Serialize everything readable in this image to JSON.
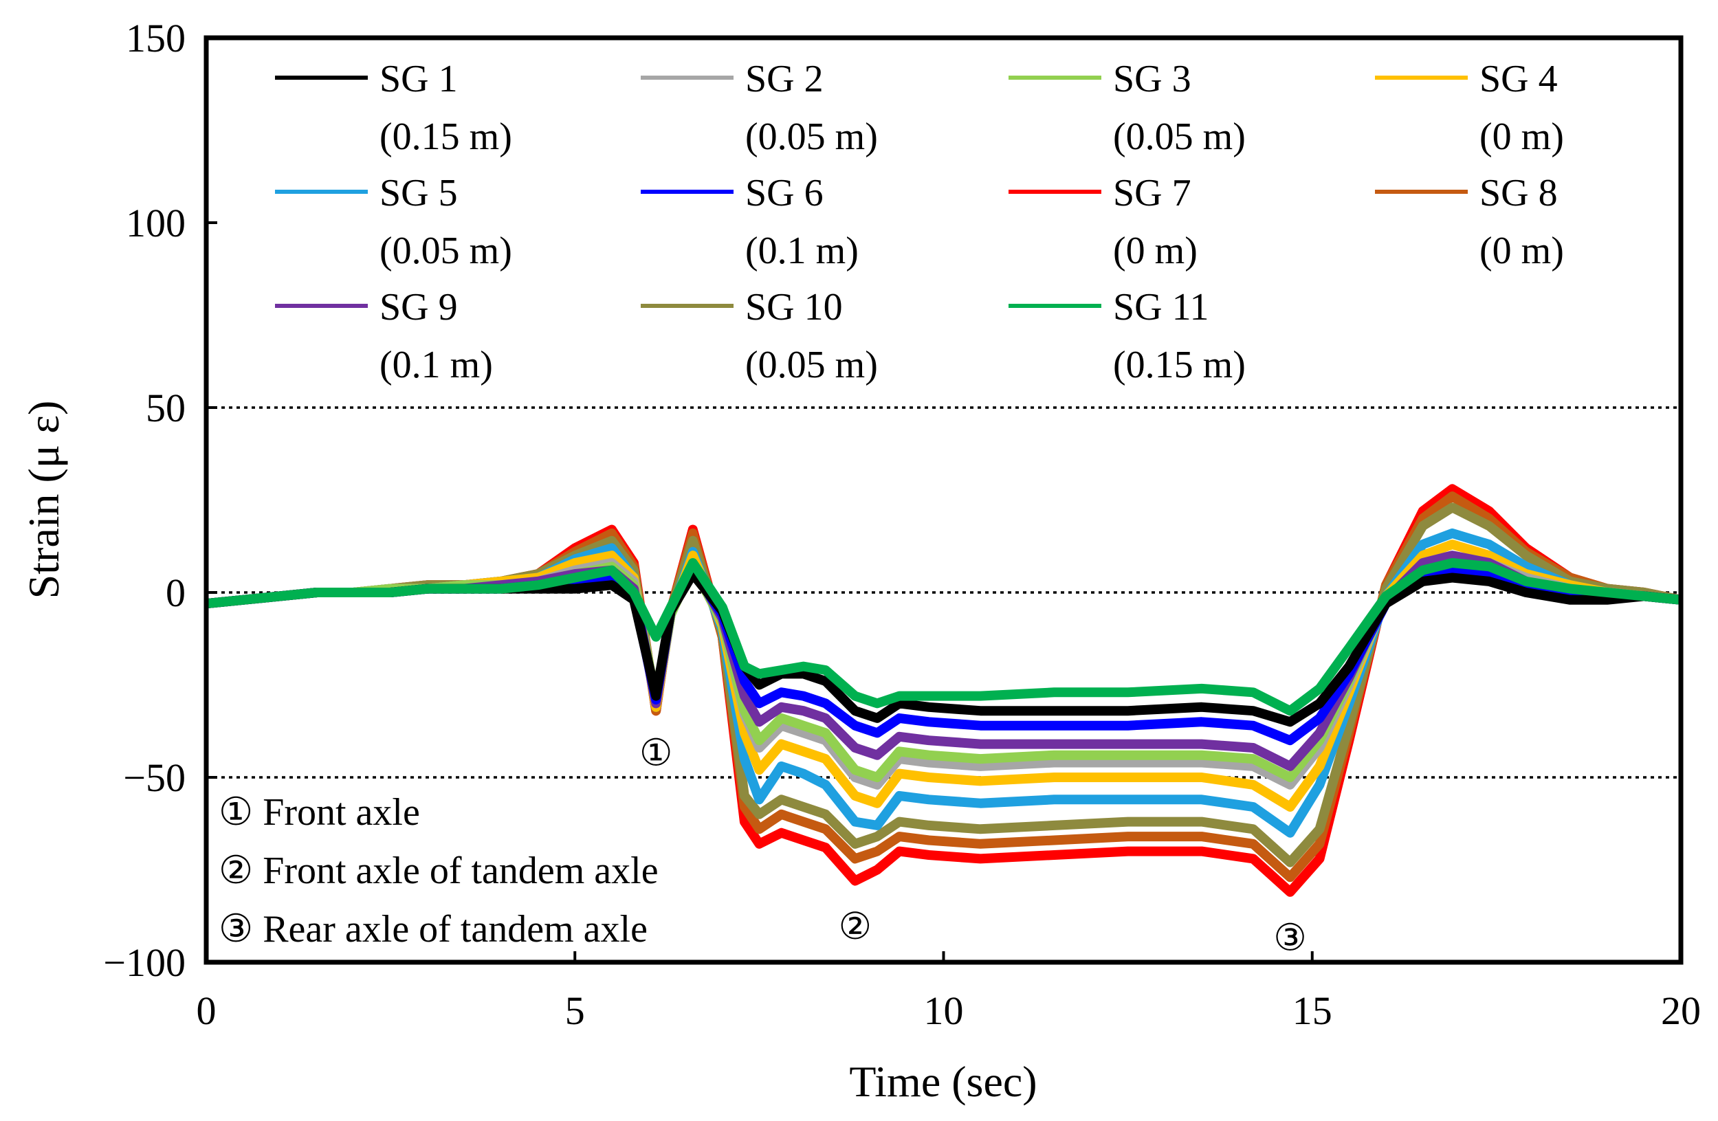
{
  "chart_data": {
    "type": "line",
    "xlabel": "Time (sec)",
    "ylabel": "Strain (μ ε)",
    "xlim": [
      0,
      20
    ],
    "ylim": [
      -100,
      150
    ],
    "x_ticks": [
      "0",
      "5",
      "10",
      "15",
      "20"
    ],
    "y_ticks": [
      "150",
      "100",
      "50",
      "0",
      "−50",
      "−100"
    ],
    "reference_lines": [
      50,
      0,
      -50
    ],
    "grid": false,
    "legend_position": "top, inside plot (4 columns)",
    "x": [
      0,
      0.5,
      1,
      1.5,
      2,
      2.5,
      3,
      3.5,
      4,
      4.5,
      5,
      5.5,
      5.8,
      6.1,
      6.3,
      6.6,
      7,
      7.3,
      7.5,
      7.8,
      8.1,
      8.4,
      8.8,
      9.1,
      9.4,
      9.8,
      10.5,
      11.5,
      12.5,
      13.5,
      14.2,
      14.7,
      15.1,
      15.5,
      16,
      16.5,
      16.9,
      17.4,
      17.9,
      18.5,
      19,
      19.5,
      20
    ],
    "series": [
      {
        "name": "SG 1",
        "color": "#000000",
        "values": [
          -3,
          -2,
          -1,
          0,
          0,
          0,
          1,
          1,
          1,
          1,
          1,
          2,
          -2,
          -28,
          -5,
          5,
          -5,
          -20,
          -25,
          -22,
          -22,
          -24,
          -32,
          -34,
          -30,
          -31,
          -32,
          -32,
          -32,
          -31,
          -32,
          -35,
          -30,
          -20,
          -3,
          3,
          4,
          3,
          0,
          -2,
          -2,
          -1,
          -2
        ]
      },
      {
        "name": "SG 2",
        "color": "#a6a6a6",
        "values": [
          -3,
          -2,
          -1,
          0,
          0,
          1,
          1,
          2,
          2,
          3,
          6,
          8,
          3,
          -30,
          -6,
          8,
          -8,
          -33,
          -42,
          -36,
          -38,
          -40,
          -50,
          -52,
          -45,
          -46,
          -47,
          -46,
          -46,
          -46,
          -47,
          -52,
          -42,
          -25,
          -2,
          8,
          10,
          8,
          4,
          1,
          0,
          -1,
          -2
        ]
      },
      {
        "name": "SG 3",
        "color": "#92d050",
        "values": [
          -3,
          -2,
          -1,
          0,
          0,
          1,
          1,
          2,
          2,
          3,
          5,
          7,
          2,
          -29,
          -6,
          7,
          -8,
          -32,
          -40,
          -34,
          -36,
          -38,
          -48,
          -50,
          -43,
          -44,
          -45,
          -44,
          -44,
          -44,
          -45,
          -50,
          -40,
          -24,
          -2,
          7,
          9,
          7,
          3,
          1,
          0,
          -1,
          -2
        ]
      },
      {
        "name": "SG 4",
        "color": "#ffc000",
        "values": [
          -3,
          -2,
          -1,
          0,
          0,
          1,
          1,
          2,
          3,
          4,
          8,
          10,
          4,
          -31,
          -6,
          10,
          -9,
          -38,
          -48,
          -41,
          -43,
          -45,
          -55,
          -57,
          -49,
          -50,
          -51,
          -50,
          -50,
          -50,
          -52,
          -58,
          -47,
          -27,
          -1,
          10,
          13,
          10,
          5,
          2,
          0,
          -1,
          -2
        ]
      },
      {
        "name": "SG 5",
        "color": "#1fa0e0",
        "values": [
          -3,
          -2,
          -1,
          0,
          0,
          1,
          1,
          2,
          3,
          4,
          9,
          12,
          4,
          -31,
          -6,
          11,
          -10,
          -45,
          -56,
          -47,
          -49,
          -52,
          -62,
          -63,
          -55,
          -56,
          -57,
          -56,
          -56,
          -56,
          -58,
          -65,
          -52,
          -30,
          -1,
          13,
          16,
          13,
          7,
          2,
          0,
          -1,
          -2
        ]
      },
      {
        "name": "SG 6",
        "color": "#0000ff",
        "values": [
          -3,
          -2,
          -1,
          0,
          0,
          0,
          1,
          1,
          1,
          2,
          3,
          4,
          -1,
          -29,
          -5,
          6,
          -6,
          -24,
          -30,
          -27,
          -28,
          -30,
          -36,
          -38,
          -34,
          -35,
          -36,
          -36,
          -36,
          -35,
          -36,
          -40,
          -34,
          -22,
          -3,
          4,
          6,
          5,
          1,
          -1,
          -1,
          -1,
          -2
        ]
      },
      {
        "name": "SG 7",
        "color": "#ff0000",
        "values": [
          -3,
          -2,
          -1,
          0,
          0,
          1,
          2,
          2,
          3,
          5,
          12,
          17,
          8,
          -32,
          -5,
          17,
          -12,
          -62,
          -68,
          -65,
          -67,
          -69,
          -78,
          -75,
          -70,
          -71,
          -72,
          -71,
          -70,
          -70,
          -72,
          -81,
          -72,
          -40,
          2,
          22,
          28,
          22,
          12,
          4,
          1,
          0,
          -2
        ]
      },
      {
        "name": "SG 8",
        "color": "#c55a11",
        "values": [
          -3,
          -2,
          -1,
          0,
          0,
          1,
          2,
          2,
          3,
          5,
          11,
          16,
          7,
          -32,
          -5,
          16,
          -12,
          -58,
          -64,
          -60,
          -62,
          -64,
          -72,
          -70,
          -66,
          -67,
          -68,
          -67,
          -66,
          -66,
          -68,
          -77,
          -68,
          -38,
          2,
          20,
          26,
          20,
          11,
          4,
          1,
          0,
          -2
        ]
      },
      {
        "name": "SG 9",
        "color": "#7030a0",
        "values": [
          -3,
          -2,
          -1,
          0,
          0,
          0,
          1,
          1,
          2,
          3,
          5,
          6,
          1,
          -30,
          -5,
          7,
          -7,
          -28,
          -35,
          -31,
          -32,
          -34,
          -42,
          -44,
          -39,
          -40,
          -41,
          -41,
          -41,
          -41,
          -42,
          -47,
          -38,
          -23,
          -2,
          8,
          10,
          8,
          3,
          0,
          -1,
          -1,
          -2
        ]
      },
      {
        "name": "SG 10",
        "color": "#8e8a3e",
        "values": [
          -3,
          -2,
          -1,
          0,
          0,
          1,
          2,
          2,
          3,
          5,
          10,
          14,
          6,
          -31,
          -5,
          14,
          -11,
          -55,
          -60,
          -56,
          -58,
          -60,
          -68,
          -66,
          -62,
          -63,
          -64,
          -63,
          -62,
          -62,
          -64,
          -73,
          -64,
          -36,
          1,
          18,
          23,
          18,
          10,
          3,
          1,
          0,
          -2
        ]
      },
      {
        "name": "SG 11",
        "color": "#00b050",
        "values": [
          -3,
          -2,
          -1,
          0,
          0,
          0,
          1,
          1,
          1,
          2,
          4,
          6,
          0,
          -12,
          -4,
          8,
          -4,
          -20,
          -22,
          -21,
          -20,
          -21,
          -28,
          -30,
          -28,
          -28,
          -28,
          -27,
          -27,
          -26,
          -27,
          -32,
          -26,
          -15,
          -1,
          6,
          8,
          7,
          3,
          1,
          0,
          -1,
          -2
        ]
      }
    ],
    "legend": [
      {
        "series": "SG 1",
        "label": "SG 1",
        "sublabel": "(0.15 m)"
      },
      {
        "series": "SG 2",
        "label": "SG 2",
        "sublabel": "(0.05 m)"
      },
      {
        "series": "SG 3",
        "label": "SG 3",
        "sublabel": "(0.05 m)"
      },
      {
        "series": "SG 4",
        "label": "SG 4",
        "sublabel": "(0 m)"
      },
      {
        "series": "SG 5",
        "label": "SG 5",
        "sublabel": "(0.05 m)"
      },
      {
        "series": "SG 6",
        "label": "SG 6",
        "sublabel": "(0.1 m)"
      },
      {
        "series": "SG 7",
        "label": "SG 7",
        "sublabel": "(0 m)"
      },
      {
        "series": "SG 8",
        "label": "SG 8",
        "sublabel": "(0 m)"
      },
      {
        "series": "SG 9",
        "label": "SG 9",
        "sublabel": "(0.1 m)"
      },
      {
        "series": "SG 10",
        "label": "SG 10",
        "sublabel": "(0.05 m)"
      },
      {
        "series": "SG 11",
        "label": "SG 11",
        "sublabel": "(0.15 m)"
      }
    ],
    "markers": [
      {
        "label": "①",
        "x": 6.1,
        "y": -43
      },
      {
        "label": "②",
        "x": 8.8,
        "y": -90
      },
      {
        "label": "③",
        "x": 14.7,
        "y": -93
      }
    ],
    "annotations": [
      "① Front axle",
      "② Front axle of tandem axle",
      "③ Rear axle of tandem axle"
    ]
  }
}
